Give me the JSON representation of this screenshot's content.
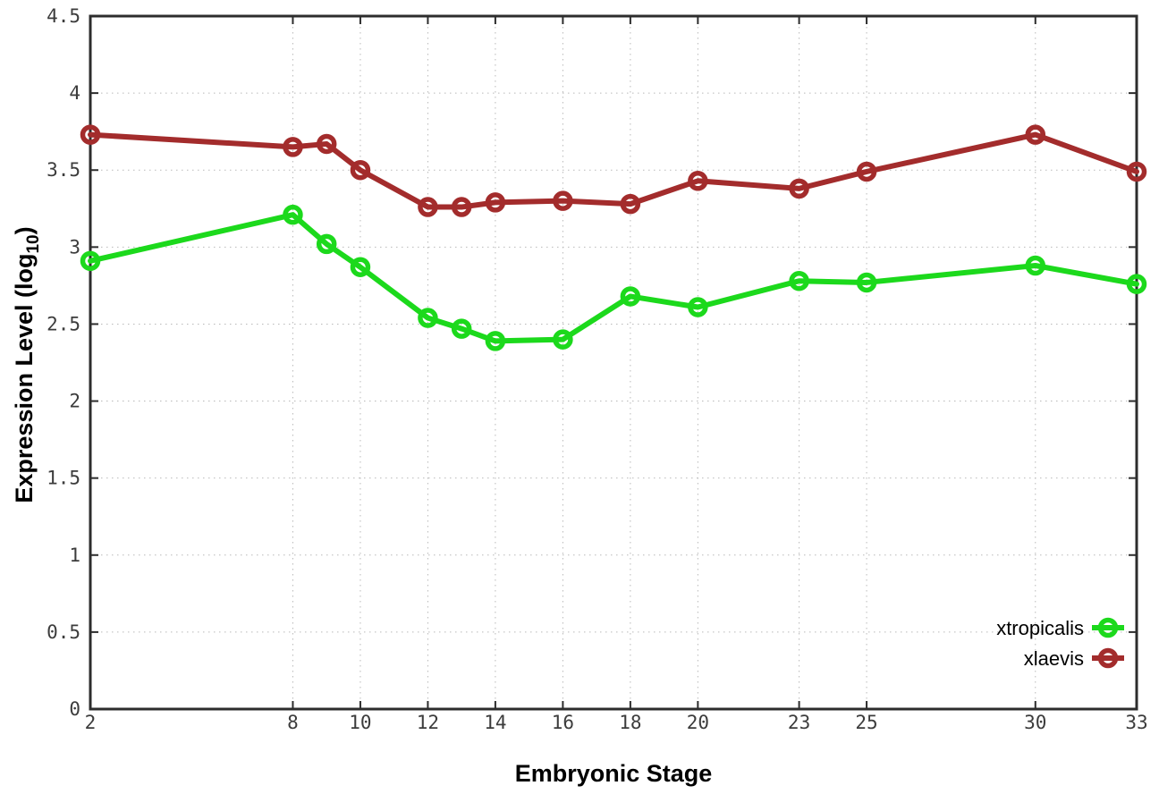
{
  "figure": {
    "background_color": "#ffffff",
    "border_color": "#2d2d2d",
    "grid_color": "#b9b9b9"
  },
  "chart_data": {
    "type": "line",
    "title": "",
    "xlabel": "Embryonic Stage",
    "ylabel": "Expression Level (log10)",
    "ylabel_parts": {
      "pre": "Expression Level (log",
      "sub": "10",
      "post": ")"
    },
    "xlim": [
      2,
      33
    ],
    "ylim": [
      0,
      4.5
    ],
    "xticks": [
      2,
      8,
      10,
      12,
      14,
      16,
      18,
      20,
      23,
      25,
      30,
      33
    ],
    "yticks": [
      0,
      0.5,
      1,
      1.5,
      2,
      2.5,
      3,
      3.5,
      4,
      4.5
    ],
    "grid": true,
    "legend_position": "bottom-right",
    "x": [
      2,
      8,
      9,
      10,
      12,
      13,
      14,
      16,
      18,
      20,
      23,
      25,
      30,
      33
    ],
    "series": [
      {
        "name": "xtropicalis",
        "color": "#1cd91c",
        "marker": "open-circle",
        "values": [
          2.91,
          3.21,
          3.02,
          2.87,
          2.54,
          2.47,
          2.39,
          2.4,
          2.68,
          2.61,
          2.78,
          2.77,
          2.88,
          2.76
        ]
      },
      {
        "name": "xlaevis",
        "color": "#a32c2c",
        "marker": "open-circle",
        "values": [
          3.73,
          3.65,
          3.67,
          3.5,
          3.26,
          3.26,
          3.29,
          3.3,
          3.28,
          3.43,
          3.38,
          3.49,
          3.73,
          3.49
        ]
      }
    ]
  }
}
